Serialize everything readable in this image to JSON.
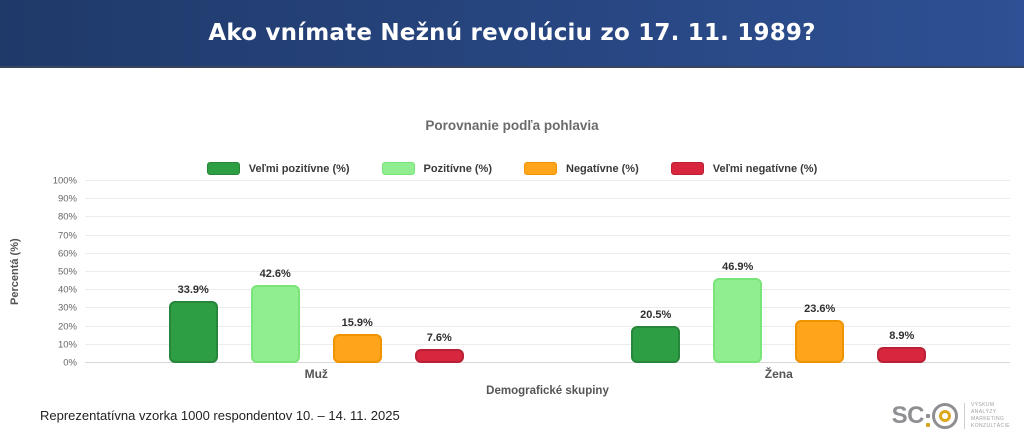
{
  "header": {
    "title": "Ako vnímate Nežnú revolúciu zo 17. 11. 1989?"
  },
  "chart": {
    "title": "Porovnanie podľa pohlavia",
    "y_axis_title": "Percentá (%)",
    "x_axis_title": "Demografické skupiny",
    "footnote": "Reprezentatívna vzorka 1000 respondentov 10. – 14. 11. 2025"
  },
  "chart_data": {
    "type": "bar",
    "title": "Porovnanie podľa pohlavia",
    "xlabel": "Demografické skupiny",
    "ylabel": "Percentá (%)",
    "ylim": [
      0,
      100
    ],
    "y_tick_step": 10,
    "y_tick_suffix": "%",
    "grid": true,
    "legend_position": "top",
    "categories": [
      "Muž",
      "Žena"
    ],
    "series": [
      {
        "name": "Veľmi pozitívne (%)",
        "color": "#2e9e45",
        "border": "#27863a",
        "values": [
          33.9,
          20.5
        ]
      },
      {
        "name": "Pozitívne (%)",
        "color": "#90ee90",
        "border": "#79e579",
        "values": [
          42.6,
          46.9
        ]
      },
      {
        "name": "Negatívne (%)",
        "color": "#ffa41b",
        "border": "#f09300",
        "values": [
          15.9,
          23.6
        ]
      },
      {
        "name": "Veľmi negatívne (%)",
        "color": "#d7263e",
        "border": "#ba2136",
        "values": [
          7.6,
          8.9
        ]
      }
    ]
  },
  "logo": {
    "text": "SC",
    "tagline_lines": [
      "VÝSKUM",
      "ANALÝZY",
      "MARKETING",
      "KONZULTÁCIE"
    ],
    "accent_color": "#d9a51f",
    "gray_color": "#8d8f92"
  }
}
